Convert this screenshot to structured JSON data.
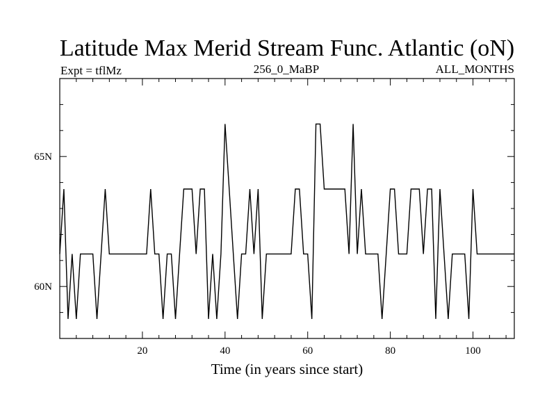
{
  "chart_data": {
    "type": "line",
    "title": "Latitude Max Merid Stream Func. Atlantic (oN)",
    "subtitle_left": "Expt = tflMz",
    "subtitle_center": "256_0_MaBP",
    "subtitle_right": "ALL_MONTHS",
    "xlabel": "Time (in years since start)",
    "ylabel": "",
    "xlim": [
      0,
      110
    ],
    "ylim": [
      58,
      68
    ],
    "x_ticks": [
      20,
      40,
      60,
      80,
      100
    ],
    "x_tick_labels": [
      "20",
      "40",
      "60",
      "80",
      "100"
    ],
    "y_ticks": [
      60,
      65
    ],
    "y_tick_labels": [
      "60N",
      "65N"
    ],
    "grid": false,
    "series": [
      {
        "name": "tflMz",
        "color": "#000000",
        "x": [
          0,
          1,
          2,
          3,
          4,
          5,
          6,
          7,
          8,
          9,
          10,
          11,
          12,
          13,
          14,
          15,
          16,
          17,
          18,
          19,
          20,
          21,
          22,
          23,
          24,
          25,
          26,
          27,
          28,
          29,
          30,
          31,
          32,
          33,
          34,
          35,
          36,
          37,
          38,
          39,
          40,
          41,
          42,
          43,
          44,
          45,
          46,
          47,
          48,
          49,
          50,
          51,
          52,
          53,
          54,
          55,
          56,
          57,
          58,
          59,
          60,
          61,
          62,
          63,
          64,
          65,
          66,
          67,
          68,
          69,
          70,
          71,
          72,
          73,
          74,
          75,
          76,
          77,
          78,
          79,
          80,
          81,
          82,
          83,
          84,
          85,
          86,
          87,
          88,
          89,
          90,
          91,
          92,
          93,
          94,
          95,
          96,
          97,
          98,
          99,
          100,
          101,
          102,
          103,
          104,
          105,
          106,
          107,
          108,
          109,
          110
        ],
        "values": [
          61.25,
          63.75,
          58.75,
          61.25,
          58.75,
          61.25,
          61.25,
          61.25,
          61.25,
          58.75,
          61.25,
          63.75,
          61.25,
          61.25,
          61.25,
          61.25,
          61.25,
          61.25,
          61.25,
          61.25,
          61.25,
          61.25,
          63.75,
          61.25,
          61.25,
          58.75,
          61.25,
          61.25,
          58.75,
          61.25,
          63.75,
          63.75,
          63.75,
          61.25,
          63.75,
          63.75,
          58.75,
          61.25,
          58.75,
          61.25,
          66.25,
          63.75,
          61.25,
          58.75,
          61.25,
          61.25,
          63.75,
          61.25,
          63.75,
          58.75,
          61.25,
          61.25,
          61.25,
          61.25,
          61.25,
          61.25,
          61.25,
          63.75,
          63.75,
          61.25,
          61.25,
          58.75,
          66.25,
          66.25,
          63.75,
          63.75,
          63.75,
          63.75,
          63.75,
          63.75,
          61.25,
          66.25,
          61.25,
          63.75,
          61.25,
          61.25,
          61.25,
          61.25,
          58.75,
          61.25,
          63.75,
          63.75,
          61.25,
          61.25,
          61.25,
          63.75,
          63.75,
          63.75,
          61.25,
          63.75,
          63.75,
          58.75,
          63.75,
          61.25,
          58.75,
          61.25,
          61.25,
          61.25,
          61.25,
          58.75,
          63.75,
          61.25,
          61.25,
          61.25,
          61.25,
          61.25,
          61.25,
          61.25,
          61.25,
          61.25,
          61.25
        ]
      }
    ]
  }
}
